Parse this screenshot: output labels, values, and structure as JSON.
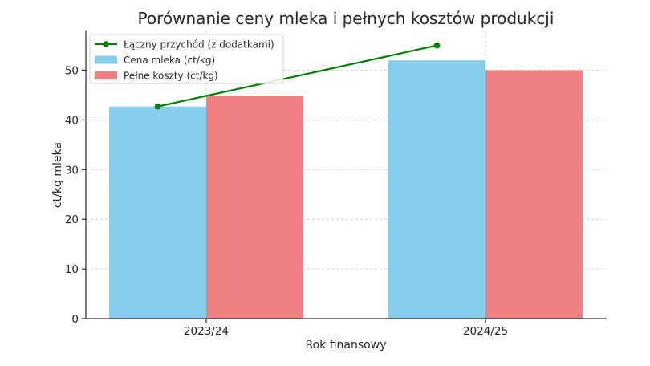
{
  "chart_data": {
    "type": "bar",
    "title": "Porównanie ceny mleka i pełnych kosztów produkcji",
    "xlabel": "Rok finansowy",
    "ylabel": "ct/kg mleka",
    "categories": [
      "2023/24",
      "2024/25"
    ],
    "ylim": [
      0,
      58
    ],
    "yticks": [
      0,
      10,
      20,
      30,
      40,
      50
    ],
    "grid": true,
    "legend_position": "top-left",
    "series": [
      {
        "name": "Cena mleka (ct/kg)",
        "kind": "bar",
        "color": "#87ceeb",
        "values": [
          42.7,
          52.0
        ]
      },
      {
        "name": "Pełne koszty (ct/kg)",
        "kind": "bar",
        "color": "#f08080",
        "values": [
          44.9,
          50.0
        ]
      },
      {
        "name": "Łączny przychód (z dodatkami)",
        "kind": "line",
        "color": "#008000",
        "values": [
          42.7,
          55.0
        ]
      }
    ]
  }
}
